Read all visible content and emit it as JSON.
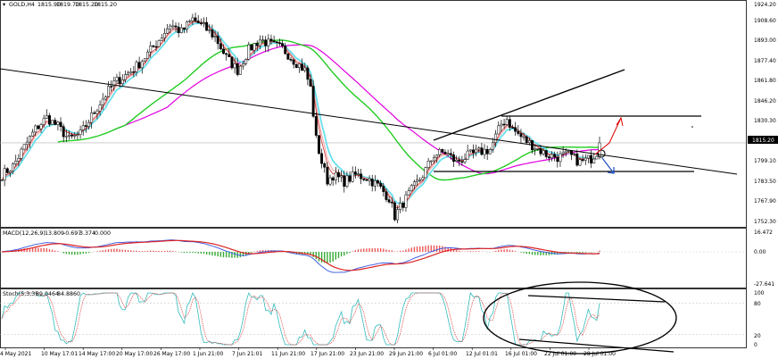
{
  "chart_data": [
    {
      "type": "candlestick",
      "symbol_label": "GOLD,H4",
      "ohlc": [
        "1815.90",
        "1819.70",
        "1815.20",
        "1815.20"
      ],
      "last_price": "1815.20",
      "y_ticks": [
        "1924.20",
        "1908.60",
        "1893.00",
        "1877.40",
        "1861.80",
        "1846.20",
        "1830.30",
        "1815.20",
        "1799.10",
        "1783.50",
        "1767.90",
        "1752.30"
      ],
      "x_ticks": [
        "4 May 2021",
        "10 May 17:01",
        "14 May 17:00",
        "20 May 17:00",
        "26 May 17:00",
        "1 Jun 21:00",
        "7 Jun 21:01",
        "11 Jun 21:00",
        "17 Jun 21:00",
        "23 Jun 21:00",
        "29 Jun 21:00",
        "6 Jul 01:00",
        "12 Jul 01:01",
        "16 Jul 01:00",
        "22 Jul 01:00",
        "28 Jul 01:00"
      ],
      "close_path": [
        [
          0,
          1790
        ],
        [
          4,
          1797
        ],
        [
          8,
          1812
        ],
        [
          12,
          1826
        ],
        [
          16,
          1835
        ],
        [
          20,
          1828
        ],
        [
          24,
          1818
        ],
        [
          28,
          1822
        ],
        [
          32,
          1836
        ],
        [
          36,
          1850
        ],
        [
          40,
          1862
        ],
        [
          44,
          1868
        ],
        [
          48,
          1875
        ],
        [
          52,
          1885
        ],
        [
          56,
          1896
        ],
        [
          60,
          1908
        ],
        [
          64,
          1902
        ],
        [
          68,
          1912
        ],
        [
          72,
          1906
        ],
        [
          76,
          1898
        ],
        [
          80,
          1882
        ],
        [
          84,
          1872
        ],
        [
          88,
          1888
        ],
        [
          92,
          1896
        ],
        [
          96,
          1892
        ],
        [
          100,
          1889
        ],
        [
          104,
          1880
        ],
        [
          108,
          1872
        ],
        [
          110,
          1858
        ],
        [
          112,
          1818
        ],
        [
          114,
          1800
        ],
        [
          116,
          1786
        ],
        [
          118,
          1790
        ],
        [
          122,
          1785
        ],
        [
          126,
          1790
        ],
        [
          130,
          1788
        ],
        [
          134,
          1782
        ],
        [
          138,
          1772
        ],
        [
          140,
          1758
        ],
        [
          142,
          1765
        ],
        [
          146,
          1778
        ],
        [
          150,
          1790
        ],
        [
          154,
          1806
        ],
        [
          158,
          1808
        ],
        [
          162,
          1800
        ],
        [
          166,
          1805
        ],
        [
          170,
          1808
        ],
        [
          174,
          1810
        ],
        [
          176,
          1820
        ],
        [
          178,
          1830
        ],
        [
          180,
          1834
        ],
        [
          182,
          1826
        ],
        [
          186,
          1818
        ],
        [
          190,
          1812
        ],
        [
          194,
          1806
        ],
        [
          198,
          1804
        ],
        [
          202,
          1806
        ],
        [
          206,
          1800
        ],
        [
          210,
          1803
        ],
        [
          212,
          1808
        ],
        [
          213,
          1815
        ]
      ],
      "indicators": [
        {
          "name": "MACD(12,26,9)",
          "values": [
            "13.809",
            "-0.697",
            "3.374",
            "0.000"
          ],
          "y_ticks": [
            "16.472",
            "0.00",
            "-27.641"
          ]
        },
        {
          "name": "Stoch(5,3,3)",
          "values": [
            "89.0464",
            "84.8860"
          ],
          "y_ticks": [
            "100",
            "80",
            "20",
            "0"
          ]
        }
      ]
    }
  ]
}
